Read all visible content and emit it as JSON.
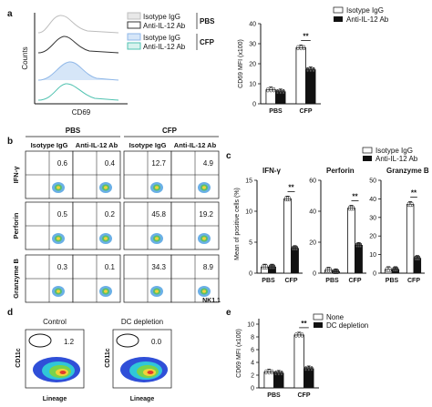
{
  "figure": {
    "panel_labels": [
      "a",
      "b",
      "c",
      "d",
      "e"
    ],
    "a_hist": {
      "legend": [
        "Isotype IgG",
        "Anti-IL-12 Ab",
        "Isotype IgG",
        "Anti-IL-12 Ab"
      ],
      "group_labels": [
        "PBS",
        "CFP"
      ],
      "ylabel": "Counts",
      "xlabel": "CD69",
      "colors": [
        "#bdbdbd",
        "#333333",
        "#8fb7e8",
        "#4fc2b0"
      ]
    },
    "b_flow": {
      "groups": [
        "PBS",
        "CFP"
      ],
      "columns": [
        "Isotype IgG",
        "Anti-IL-12 Ab",
        "Isotype IgG",
        "Anti-IL-12 Ab"
      ],
      "rows": [
        "IFN-γ",
        "Perforin",
        "Granzyme B"
      ],
      "values": [
        [
          "0.6",
          "0.4",
          "12.7",
          "4.9"
        ],
        [
          "0.5",
          "0.2",
          "45.8",
          "19.2"
        ],
        [
          "0.3",
          "0.1",
          "34.3",
          "8.9"
        ]
      ],
      "xlabel": "NK1.1"
    },
    "d_flow": {
      "panels": [
        "Control",
        "DC depletion"
      ],
      "values": [
        "1.2",
        "0.0"
      ],
      "ylabel": "CD11c",
      "xlabel": "Lineage"
    },
    "sig": "**"
  },
  "chart_data": [
    {
      "id": "a-bar",
      "type": "bar",
      "categories": [
        "PBS",
        "CFP"
      ],
      "series": [
        {
          "name": "Isotype IgG",
          "values": [
            7,
            28
          ],
          "color": "#ffffff"
        },
        {
          "name": "Anti-IL-12 Ab",
          "values": [
            6,
            17
          ],
          "color": "#111111"
        }
      ],
      "ylabel": "CD69 MFI (x100)",
      "yticks": [
        0,
        10,
        20,
        30,
        40
      ],
      "ylim": [
        0,
        40
      ],
      "significance": "**"
    },
    {
      "id": "c-bars",
      "type": "bar",
      "legend": [
        "Isotype IgG",
        "Anti-IL-12 Ab"
      ],
      "ylabel": "Mean of positive cells (%)",
      "categories": [
        "PBS",
        "CFP"
      ],
      "subplots": [
        {
          "title": "IFN-γ",
          "series_values": [
            [
              1,
              12
            ],
            [
              1,
              4
            ]
          ],
          "yticks": [
            0,
            5,
            10,
            15
          ],
          "ylim": [
            0,
            15
          ]
        },
        {
          "title": "Perforin",
          "series_values": [
            [
              2,
              42
            ],
            [
              1,
              18
            ]
          ],
          "yticks": [
            0,
            20,
            40,
            60
          ],
          "ylim": [
            0,
            60
          ]
        },
        {
          "title": "Granzyme B",
          "series_values": [
            [
              2,
              37
            ],
            [
              2,
              8
            ]
          ],
          "yticks": [
            0,
            10,
            20,
            30,
            40,
            50
          ],
          "ylim": [
            0,
            50
          ]
        }
      ],
      "significance": "**"
    },
    {
      "id": "e-bar",
      "type": "bar",
      "categories": [
        "PBS",
        "CFP"
      ],
      "series": [
        {
          "name": "None",
          "values": [
            2.5,
            8.3
          ],
          "color": "#ffffff"
        },
        {
          "name": "DC depletion",
          "values": [
            2.3,
            3.0
          ],
          "color": "#111111"
        }
      ],
      "ylabel": "CD69 MFI (x100)",
      "yticks": [
        0,
        2,
        4,
        6,
        8,
        10
      ],
      "ylim": [
        0,
        10
      ],
      "significance": "**"
    }
  ]
}
